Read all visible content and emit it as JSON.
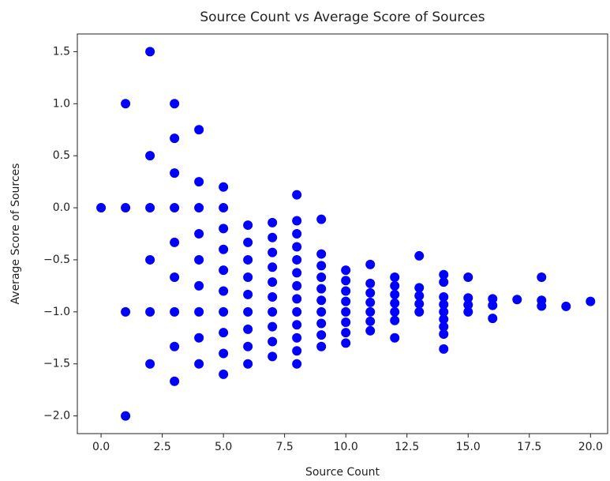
{
  "chart_data": {
    "type": "scatter",
    "title": "Source Count vs Average Score of Sources",
    "x_label": "Source Count",
    "y_label": "Average Score of Sources",
    "series": [
      {
        "color": "#0000ff",
        "x": [
          0,
          1,
          1,
          1,
          1,
          2,
          2,
          2,
          2,
          2,
          2,
          3,
          3,
          3,
          3,
          3,
          3,
          3,
          3,
          3,
          4,
          4,
          4,
          4,
          4,
          4,
          4,
          4,
          4,
          5,
          5,
          5,
          5,
          5,
          5,
          5,
          5,
          5,
          5,
          6,
          6,
          6,
          6,
          6,
          6,
          6,
          6,
          6,
          7,
          7,
          7,
          7,
          7,
          7,
          7,
          7,
          7,
          7,
          8,
          8,
          8,
          8,
          8,
          8,
          8,
          8,
          8,
          8,
          8,
          8,
          8,
          9,
          9,
          9,
          9,
          9,
          9,
          9,
          9,
          9,
          9,
          10,
          10,
          10,
          10,
          10,
          10,
          10,
          10,
          11,
          11,
          11,
          11,
          11,
          11,
          11,
          12,
          12,
          12,
          12,
          12,
          12,
          12,
          13,
          13,
          13,
          13,
          13,
          14,
          14,
          14,
          14,
          14,
          14,
          14,
          14,
          14,
          15,
          15,
          15,
          15,
          16,
          16,
          16,
          17,
          18,
          18,
          18,
          19,
          20
        ],
        "y": [
          0,
          1,
          0,
          -1,
          -2,
          1.5,
          0.5,
          0,
          -0.5,
          -1,
          -1.5,
          1,
          0.667,
          0.333,
          0,
          -0.333,
          -0.667,
          -1,
          -1.333,
          -1.667,
          0.75,
          0.25,
          0,
          -0.25,
          -0.5,
          -0.75,
          -1,
          -1.25,
          -1.5,
          0.2,
          0,
          -0.2,
          -0.4,
          -0.6,
          -0.8,
          -1,
          -1.2,
          -1.4,
          -1.6,
          -0.167,
          -0.333,
          -0.5,
          -0.667,
          -0.833,
          -1,
          -1.167,
          -1.333,
          -1.5,
          -0.143,
          -0.286,
          -0.429,
          -0.571,
          -0.714,
          -0.857,
          -1,
          -1.143,
          -1.286,
          -1.429,
          0.125,
          -0.125,
          -0.25,
          -0.375,
          -0.5,
          -0.625,
          -0.75,
          -0.875,
          -1,
          -1.125,
          -1.25,
          -1.375,
          -1.5,
          -0.111,
          -0.444,
          -0.556,
          -0.667,
          -0.778,
          -0.889,
          -1,
          -1.111,
          -1.222,
          -1.333,
          -0.6,
          -0.7,
          -0.8,
          -0.9,
          -1,
          -1.1,
          -1.2,
          -1.3,
          -0.545,
          -0.727,
          -0.818,
          -0.909,
          -1,
          -1.091,
          -1.182,
          -0.667,
          -0.75,
          -0.833,
          -0.917,
          -1,
          -1.083,
          -1.25,
          -0.462,
          -0.769,
          -0.846,
          -0.923,
          -1,
          -0.643,
          -0.714,
          -0.857,
          -0.929,
          -1,
          -1.071,
          -1.143,
          -1.214,
          -1.357,
          -0.667,
          -0.867,
          -0.933,
          -1,
          -0.875,
          -0.938,
          -1.063,
          -0.882,
          -0.667,
          -0.889,
          -0.944,
          -0.947,
          -0.9
        ]
      }
    ],
    "xlim": [
      -0.97,
      20.7
    ],
    "ylim": [
      -2.17,
      1.67
    ],
    "xticks": [
      {
        "value": 0,
        "label": "0.0"
      },
      {
        "value": 2.5,
        "label": "2.5"
      },
      {
        "value": 5,
        "label": "5.0"
      },
      {
        "value": 7.5,
        "label": "7.5"
      },
      {
        "value": 10,
        "label": "10.0"
      },
      {
        "value": 12.5,
        "label": "12.5"
      },
      {
        "value": 15,
        "label": "15.0"
      },
      {
        "value": 17.5,
        "label": "17.5"
      },
      {
        "value": 20,
        "label": "20.0"
      }
    ],
    "yticks": [
      {
        "value": -2,
        "label": "−2.0"
      },
      {
        "value": -1.5,
        "label": "−1.5"
      },
      {
        "value": -1,
        "label": "−1.0"
      },
      {
        "value": -0.5,
        "label": "−0.5"
      },
      {
        "value": 0,
        "label": "0.0"
      },
      {
        "value": 0.5,
        "label": "0.5"
      },
      {
        "value": 1,
        "label": "1.0"
      },
      {
        "value": 1.5,
        "label": "1.5"
      }
    ],
    "grid": false
  }
}
